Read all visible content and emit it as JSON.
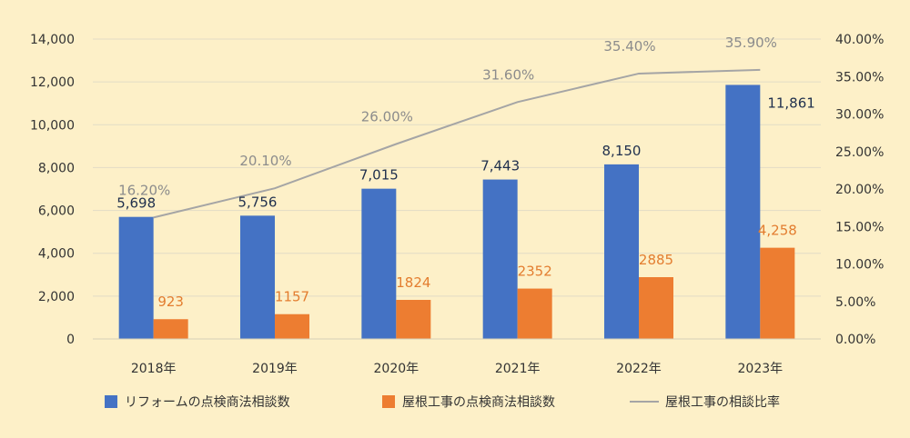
{
  "chart_data": {
    "type": "bar",
    "categories": [
      "2018年",
      "2019年",
      "2020年",
      "2021年",
      "2022年",
      "2023年"
    ],
    "series": [
      {
        "name": "リフォームの点検商法相談数",
        "kind": "bar",
        "axis": "left",
        "color": "#4472c4",
        "values": [
          5698,
          5756,
          7015,
          7443,
          8150,
          11861
        ],
        "labels": [
          "5,698",
          "5,756",
          "7,015",
          "7,443",
          "8,150",
          "11,861"
        ]
      },
      {
        "name": "屋根工事の点検商法相談数",
        "kind": "bar",
        "axis": "left",
        "color": "#ed7d31",
        "values": [
          923,
          1157,
          1824,
          2352,
          2885,
          4258
        ],
        "labels": [
          "923",
          "1157",
          "1824",
          "2352",
          "2885",
          "4,258"
        ]
      },
      {
        "name": "屋根工事の相談比率",
        "kind": "line",
        "axis": "right",
        "color": "#a5a5a5",
        "values": [
          16.2,
          20.1,
          26.0,
          31.6,
          35.4,
          35.9
        ],
        "labels": [
          "16.20%",
          "20.10%",
          "26.00%",
          "31.60%",
          "35.40%",
          "35.90%"
        ]
      }
    ],
    "y_left": {
      "lim": [
        0,
        14000
      ],
      "ticks": [
        "0",
        "2,000",
        "4,000",
        "6,000",
        "8,000",
        "10,000",
        "12,000",
        "14,000"
      ]
    },
    "y_right": {
      "lim": [
        0,
        40
      ],
      "ticks": [
        "0.00%",
        "5.00%",
        "10.00%",
        "15.00%",
        "20.00%",
        "25.00%",
        "30.00%",
        "35.00%",
        "40.00%"
      ]
    },
    "grid": true,
    "legend_position": "bottom",
    "colors": {
      "background": "#fdf0c8",
      "grid": "#e2dcc6",
      "text": "#333333"
    }
  }
}
